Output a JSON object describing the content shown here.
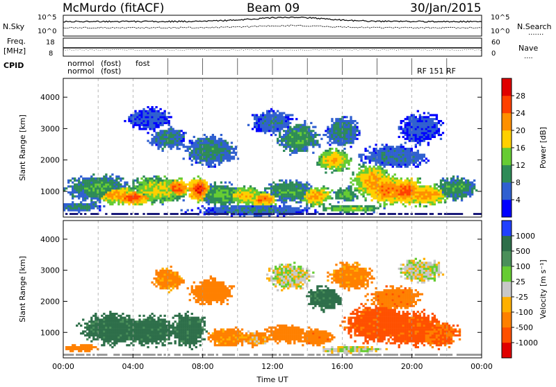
{
  "header": {
    "station": "McMurdo (fitACF)",
    "beam": "Beam 09",
    "date": "30/Jan/2015"
  },
  "top_panel": {
    "left_labels": [
      "N.Sky",
      "Freq.",
      "[MHz]",
      "CPID"
    ],
    "right_labels": [
      "N.Search",
      "Nave"
    ],
    "noise_ticks_left": [
      "10^5",
      "10^0"
    ],
    "noise_ticks_right": [
      "10^5",
      "10^0"
    ],
    "freq_ticks": [
      "18",
      "8"
    ],
    "nave_ticks": [
      "60",
      "0"
    ],
    "cpid_text": [
      "normol",
      "normol",
      "(fost)",
      "(fost)",
      "fost",
      "RF 151 RF"
    ]
  },
  "colors": {
    "power_scale": [
      "#0000ff",
      "#3060d0",
      "#2e8b57",
      "#66cc33",
      "#ffd000",
      "#ff9000",
      "#ff4000",
      "#e00000"
    ],
    "velocity_scale": [
      "#2040ff",
      "#2e6f4a",
      "#4a8f5a",
      "#66cc33",
      "#c8c8c8",
      "#ffb000",
      "#ff8000",
      "#ff5000",
      "#e00000"
    ],
    "dark_blue": "#1a1a7a"
  },
  "chart_data": [
    {
      "type": "heatmap",
      "name": "power",
      "ylabel": "Slant Range [km]",
      "ylim": [
        180,
        4600
      ],
      "yticks": [
        "1000",
        "2000",
        "3000",
        "4000"
      ],
      "colorbar_label": "Power [dB]",
      "colorbar_ticks": [
        "28",
        "24",
        "20",
        "16",
        "12",
        "8",
        "4"
      ],
      "clim": [
        0,
        32
      ],
      "blobs": [
        {
          "t": 2.0,
          "r": 1100,
          "dt": 1.5,
          "dr": 350,
          "v": 12
        },
        {
          "t": 3.0,
          "r": 900,
          "dt": 1.0,
          "dr": 250,
          "v": 22
        },
        {
          "t": 4.0,
          "r": 800,
          "dt": 1.0,
          "dr": 200,
          "v": 26
        },
        {
          "t": 5.5,
          "r": 1050,
          "dt": 1.5,
          "dr": 350,
          "v": 18
        },
        {
          "t": 6.5,
          "r": 1100,
          "dt": 0.7,
          "dr": 250,
          "v": 26
        },
        {
          "t": 7.8,
          "r": 1050,
          "dt": 0.6,
          "dr": 300,
          "v": 28
        },
        {
          "t": 9.0,
          "r": 900,
          "dt": 1.0,
          "dr": 300,
          "v": 14
        },
        {
          "t": 10.5,
          "r": 850,
          "dt": 1.0,
          "dr": 250,
          "v": 20
        },
        {
          "t": 11.5,
          "r": 750,
          "dt": 0.7,
          "dr": 200,
          "v": 24
        },
        {
          "t": 13.0,
          "r": 1000,
          "dt": 1.2,
          "dr": 300,
          "v": 12
        },
        {
          "t": 14.5,
          "r": 850,
          "dt": 0.8,
          "dr": 250,
          "v": 22
        },
        {
          "t": 15.5,
          "r": 2000,
          "dt": 0.8,
          "dr": 300,
          "v": 20
        },
        {
          "t": 16.2,
          "r": 900,
          "dt": 0.6,
          "dr": 200,
          "v": 14
        },
        {
          "t": 17.8,
          "r": 1300,
          "dt": 1.0,
          "dr": 450,
          "v": 22
        },
        {
          "t": 18.5,
          "r": 1050,
          "dt": 1.0,
          "dr": 400,
          "v": 24
        },
        {
          "t": 19.6,
          "r": 1000,
          "dt": 1.0,
          "dr": 350,
          "v": 26
        },
        {
          "t": 20.8,
          "r": 900,
          "dt": 1.2,
          "dr": 300,
          "v": 22
        },
        {
          "t": 22.5,
          "r": 1100,
          "dt": 1.0,
          "dr": 300,
          "v": 12
        },
        {
          "t": 13.5,
          "r": 2700,
          "dt": 1.0,
          "dr": 400,
          "v": 12
        },
        {
          "t": 16.0,
          "r": 2900,
          "dt": 0.8,
          "dr": 400,
          "v": 10
        },
        {
          "t": 12.0,
          "r": 3200,
          "dt": 1.0,
          "dr": 300,
          "v": 8
        },
        {
          "t": 8.5,
          "r": 2300,
          "dt": 1.2,
          "dr": 400,
          "v": 10
        },
        {
          "t": 6.0,
          "r": 2700,
          "dt": 0.8,
          "dr": 300,
          "v": 10
        },
        {
          "t": 5.0,
          "r": 3300,
          "dt": 1.0,
          "dr": 300,
          "v": 6
        },
        {
          "t": 19.0,
          "r": 2100,
          "dt": 1.5,
          "dr": 300,
          "v": 8
        },
        {
          "t": 20.5,
          "r": 3000,
          "dt": 1.0,
          "dr": 400,
          "v": 6
        },
        {
          "t": 1.0,
          "r": 500,
          "dt": 1.0,
          "dr": 120,
          "v": 10
        },
        {
          "t": 11.0,
          "r": 400,
          "dt": 3.0,
          "dr": 150,
          "v": 8
        },
        {
          "t": 16.5,
          "r": 450,
          "dt": 1.5,
          "dr": 100,
          "v": 16
        }
      ]
    },
    {
      "type": "heatmap",
      "name": "velocity",
      "ylabel": "Slant Range [km]",
      "ylim": [
        180,
        4600
      ],
      "yticks": [
        "1000",
        "2000",
        "3000",
        "4000"
      ],
      "colorbar_label": "Velocity [m s⁻¹]",
      "colorbar_ticks": [
        "1000",
        "500",
        "100",
        "25",
        "-25",
        "-100",
        "-500",
        "-1000"
      ],
      "clim": [
        -1200,
        1200
      ],
      "xlabel": "Time UT",
      "xticks": [
        "00:00",
        "04:00",
        "08:00",
        "12:00",
        "16:00",
        "20:00",
        "00:00"
      ],
      "blobs": [
        {
          "t": 3.0,
          "r": 1100,
          "dt": 1.6,
          "dr": 400,
          "v": 300
        },
        {
          "t": 5.0,
          "r": 1050,
          "dt": 1.2,
          "dr": 400,
          "v": 300
        },
        {
          "t": 7.2,
          "r": 1100,
          "dt": 0.8,
          "dr": 450,
          "v": 300
        },
        {
          "t": 9.5,
          "r": 850,
          "dt": 1.0,
          "dr": 250,
          "v": -100
        },
        {
          "t": 11.0,
          "r": 800,
          "dt": 0.8,
          "dr": 200,
          "v": -60
        },
        {
          "t": 12.8,
          "r": 950,
          "dt": 1.0,
          "dr": 250,
          "v": -150
        },
        {
          "t": 14.5,
          "r": 850,
          "dt": 0.8,
          "dr": 250,
          "v": -200
        },
        {
          "t": 15.0,
          "r": 2100,
          "dt": 0.8,
          "dr": 300,
          "v": 300
        },
        {
          "t": 18.0,
          "r": 1300,
          "dt": 1.5,
          "dr": 500,
          "v": -300
        },
        {
          "t": 20.0,
          "r": 1100,
          "dt": 1.5,
          "dr": 450,
          "v": -300
        },
        {
          "t": 21.5,
          "r": 950,
          "dt": 1.0,
          "dr": 350,
          "v": -250
        },
        {
          "t": 13.0,
          "r": 2800,
          "dt": 1.0,
          "dr": 350,
          "v": 0
        },
        {
          "t": 16.5,
          "r": 2800,
          "dt": 1.0,
          "dr": 350,
          "v": -100
        },
        {
          "t": 8.5,
          "r": 2300,
          "dt": 1.0,
          "dr": 350,
          "v": -150
        },
        {
          "t": 6.0,
          "r": 2700,
          "dt": 0.7,
          "dr": 300,
          "v": -100
        },
        {
          "t": 19.0,
          "r": 2100,
          "dt": 1.2,
          "dr": 300,
          "v": -200
        },
        {
          "t": 20.5,
          "r": 3000,
          "dt": 1.0,
          "dr": 300,
          "v": 0
        },
        {
          "t": 1.0,
          "r": 500,
          "dt": 0.8,
          "dr": 100,
          "v": -150
        },
        {
          "t": 16.5,
          "r": 450,
          "dt": 1.5,
          "dr": 100,
          "v": 0
        }
      ]
    }
  ]
}
